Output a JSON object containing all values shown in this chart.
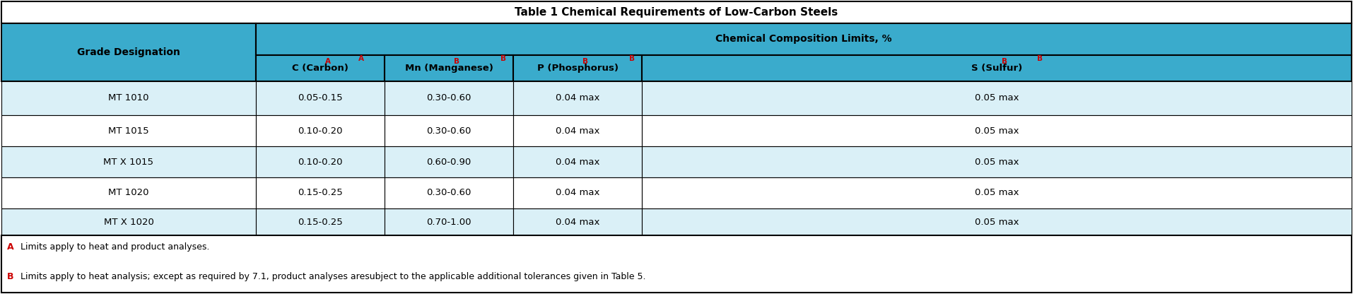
{
  "title": "Table 1 Chemical Requirements of Low-Carbon Steels",
  "header1": "Chemical Composition Limits, %",
  "col0_header": "Grade Designation",
  "col_headers": [
    "C (Carbon)",
    "Mn (Manganese)",
    "P (Phosphorus)",
    "S (Sulfur)"
  ],
  "col_header_sups": [
    "A",
    "B",
    "B",
    "B"
  ],
  "col_header_sup_colors": [
    "#CC0000",
    "#CC0000",
    "#CC0000",
    "#CC0000"
  ],
  "rows": [
    [
      "MT 1010",
      "0.05-0.15",
      "0.30-0.60",
      "0.04 max",
      "0.05 max"
    ],
    [
      "MT 1015",
      "0.10-0.20",
      "0.30-0.60",
      "0.04 max",
      "0.05 max"
    ],
    [
      "MT X 1015",
      "0.10-0.20",
      "0.60-0.90",
      "0.04 max",
      "0.05 max"
    ],
    [
      "MT 1020",
      "0.15-0.25",
      "0.30-0.60",
      "0.04 max",
      "0.05 max"
    ],
    [
      "MT X 1020",
      "0.15-0.25",
      "0.70-1.00",
      "0.04 max",
      "0.05 max"
    ]
  ],
  "footnote_A_label": "A",
  "footnote_A_text": " Limits apply to heat and product analyses.",
  "footnote_B_label": "B",
  "footnote_B_text": " Limits apply to heat analysis; except as required by 7.1, product analyses aresubject to the applicable additional tolerances given in Table 5.",
  "color_header_blue": "#3AABCC",
  "color_row_light": "#DAF0F7",
  "color_row_white": "#FFFFFF",
  "color_border": "#000000",
  "color_footnote_A": "#CC0000",
  "color_footnote_B": "#CC0000",
  "fig_width": 19.14,
  "fig_height": 4.16,
  "dpi": 100
}
